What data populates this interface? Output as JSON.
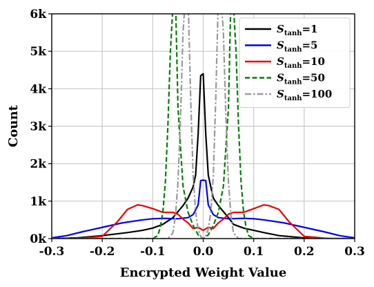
{
  "chart_data": {
    "type": "line",
    "title": "",
    "xlabel": "Encrypted Weight Value",
    "ylabel": "Count",
    "xlim": [
      -0.3,
      0.3
    ],
    "ylim": [
      0,
      6000
    ],
    "x_ticks": [
      -0.3,
      -0.2,
      -0.1,
      0.0,
      0.1,
      0.2,
      0.3
    ],
    "x_tick_labels": [
      "-0.3",
      "-0.2",
      "-0.1",
      "0.0",
      "0.1",
      "0.2",
      "0.3"
    ],
    "y_ticks": [
      0,
      1000,
      2000,
      3000,
      4000,
      5000,
      6000
    ],
    "y_tick_labels": [
      "0k",
      "1k",
      "2k",
      "3k",
      "4k",
      "5k",
      "6k"
    ],
    "grid": true,
    "legend_position": "top-right",
    "series": [
      {
        "name": "S_tanh=1",
        "label_main": "S",
        "label_sub": "tanh",
        "label_value": "=1",
        "color": "#000000",
        "dash": "solid",
        "x": [
          -0.3,
          -0.25,
          -0.2,
          -0.15,
          -0.12,
          -0.1,
          -0.08,
          -0.06,
          -0.05,
          -0.04,
          -0.03,
          -0.02,
          -0.015,
          -0.01,
          -0.005,
          0.0,
          0.005,
          0.01,
          0.015,
          0.02,
          0.03,
          0.04,
          0.05,
          0.06,
          0.08,
          0.1,
          0.12,
          0.15,
          0.2,
          0.25,
          0.3
        ],
        "y": [
          0,
          20,
          80,
          160,
          220,
          280,
          380,
          560,
          720,
          880,
          1080,
          1380,
          1700,
          2800,
          4350,
          4400,
          2800,
          1700,
          1380,
          1080,
          880,
          720,
          560,
          380,
          280,
          220,
          160,
          80,
          20,
          0,
          0
        ]
      },
      {
        "name": "S_tanh=5",
        "label_main": "S",
        "label_sub": "tanh",
        "label_value": "=5",
        "color": "#0000ee",
        "dash": "solid",
        "x": [
          -0.3,
          -0.27,
          -0.24,
          -0.2,
          -0.16,
          -0.12,
          -0.1,
          -0.08,
          -0.05,
          -0.03,
          -0.02,
          -0.01,
          -0.005,
          0.0,
          0.005,
          0.01,
          0.02,
          0.03,
          0.05,
          0.08,
          0.1,
          0.12,
          0.16,
          0.2,
          0.24,
          0.27,
          0.3
        ],
        "y": [
          20,
          80,
          180,
          300,
          420,
          500,
          530,
          540,
          530,
          560,
          640,
          900,
          1550,
          1560,
          1550,
          900,
          640,
          560,
          530,
          540,
          530,
          500,
          420,
          300,
          180,
          80,
          20
        ]
      },
      {
        "name": "S_tanh=10",
        "label_main": "S",
        "label_sub": "tanh",
        "label_value": "=10",
        "color": "#ee0000",
        "dash": "solid",
        "x": [
          -0.3,
          -0.25,
          -0.2,
          -0.17,
          -0.15,
          -0.13,
          -0.12,
          -0.1,
          -0.08,
          -0.06,
          -0.05,
          -0.04,
          -0.03,
          -0.02,
          -0.01,
          0.0,
          0.01,
          0.02,
          0.03,
          0.04,
          0.05,
          0.06,
          0.08,
          0.1,
          0.12,
          0.13,
          0.15,
          0.17,
          0.2,
          0.25,
          0.3
        ],
        "y": [
          0,
          0,
          60,
          450,
          780,
          900,
          880,
          800,
          700,
          700,
          650,
          520,
          420,
          270,
          300,
          220,
          300,
          270,
          420,
          520,
          650,
          700,
          700,
          800,
          900,
          880,
          780,
          450,
          60,
          0,
          0
        ]
      },
      {
        "name": "S_tanh=50",
        "label_main": "S",
        "label_sub": "tanh",
        "label_value": "=50",
        "color": "#008000",
        "dash": "dashed",
        "x": [
          -0.3,
          -0.1,
          -0.09,
          -0.085,
          -0.08,
          -0.075,
          -0.07,
          -0.065,
          -0.06,
          -0.057,
          -0.055,
          -0.05,
          -0.04,
          -0.03,
          -0.02,
          -0.01,
          0.0,
          0.01,
          0.02,
          0.03,
          0.04,
          0.05,
          0.055,
          0.057,
          0.06,
          0.065,
          0.07,
          0.075,
          0.08,
          0.085,
          0.09,
          0.1,
          0.3
        ],
        "y": [
          0,
          0,
          80,
          300,
          700,
          1500,
          3000,
          5000,
          6200,
          6500,
          6500,
          3500,
          1400,
          700,
          350,
          100,
          0,
          100,
          350,
          700,
          1400,
          3500,
          6500,
          6500,
          6200,
          5000,
          3000,
          1500,
          700,
          300,
          80,
          0,
          0
        ]
      },
      {
        "name": "S_tanh=100",
        "label_main": "S",
        "label_sub": "tanh",
        "label_value": "=100",
        "color": "#999999",
        "dash": "dashdot",
        "x": [
          -0.3,
          -0.07,
          -0.06,
          -0.055,
          -0.05,
          -0.045,
          -0.04,
          -0.035,
          -0.03,
          -0.025,
          -0.02,
          -0.015,
          -0.01,
          -0.005,
          0.0,
          0.005,
          0.01,
          0.015,
          0.02,
          0.025,
          0.03,
          0.035,
          0.04,
          0.045,
          0.05,
          0.055,
          0.06,
          0.07,
          0.3
        ],
        "y": [
          0,
          0,
          150,
          600,
          1500,
          3200,
          5500,
          6500,
          6500,
          3800,
          1700,
          700,
          250,
          60,
          0,
          60,
          250,
          700,
          1700,
          3800,
          6500,
          6500,
          5500,
          3200,
          1500,
          600,
          150,
          0,
          0
        ]
      }
    ]
  }
}
